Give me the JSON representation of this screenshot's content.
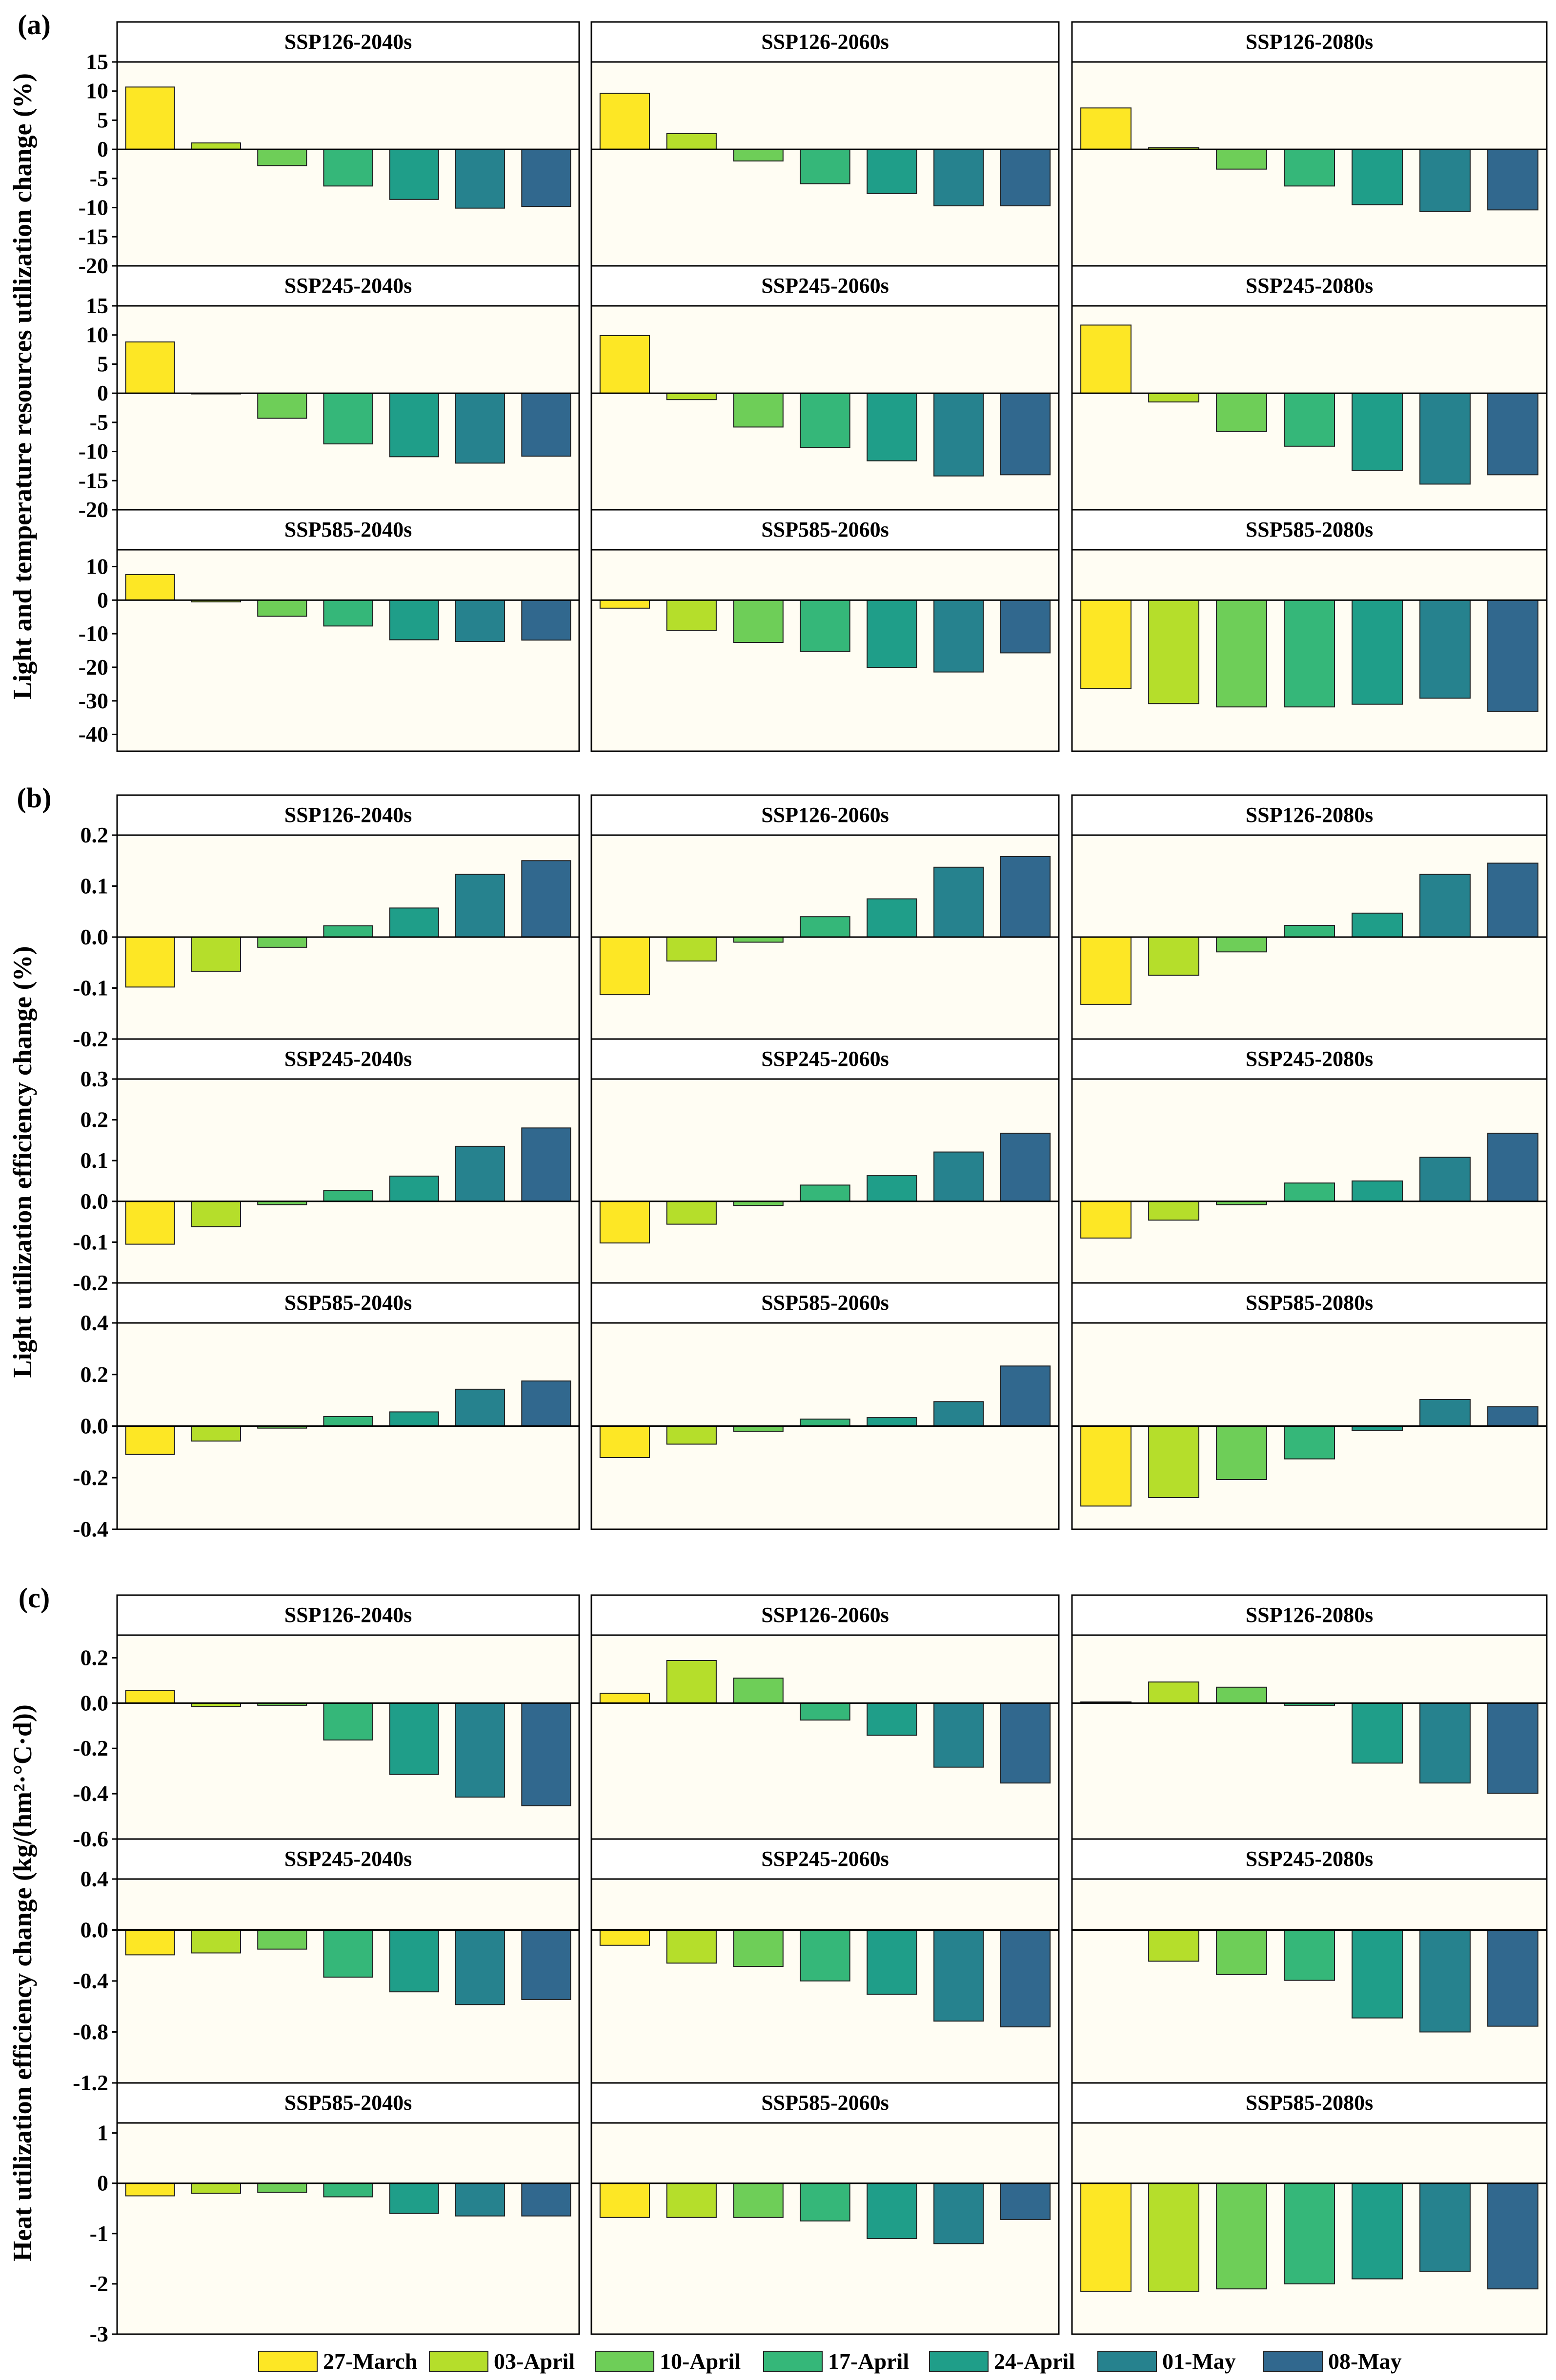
{
  "colors": [
    "#fde725",
    "#b5de2b",
    "#6ece58",
    "#35b779",
    "#1f9e89",
    "#26828e",
    "#31688e"
  ],
  "legend": [
    "27-March",
    "03-April",
    "10-April",
    "17-April",
    "24-April",
    "01-May",
    "08-May"
  ],
  "chart_data": [
    {
      "type": "bar",
      "label": "(a)",
      "ylabel": "Light and temperature resources utilization change (%)",
      "rows": [
        {
          "ylim": [
            -20,
            15
          ],
          "ticks": [
            15,
            10,
            5,
            0,
            -5,
            -10,
            -15,
            -20
          ]
        },
        {
          "ylim": [
            -20,
            15
          ],
          "ticks": [
            15,
            10,
            5,
            0,
            -5,
            -10,
            -15,
            -20
          ]
        },
        {
          "ylim": [
            -45,
            15
          ],
          "ticks": [
            10,
            0,
            -10,
            -20,
            -30,
            -40
          ]
        }
      ],
      "panels": [
        {
          "title": "SSP126-2040s",
          "values": [
            10.7,
            1.1,
            -2.8,
            -6.3,
            -8.6,
            -10.1,
            -9.8
          ]
        },
        {
          "title": "SSP126-2060s",
          "values": [
            9.6,
            2.7,
            -2.0,
            -5.9,
            -7.6,
            -9.7,
            -9.7
          ]
        },
        {
          "title": "SSP126-2080s",
          "values": [
            7.1,
            0.3,
            -3.4,
            -6.3,
            -9.5,
            -10.7,
            -10.4
          ]
        },
        {
          "title": "SSP245-2040s",
          "values": [
            8.8,
            0.0,
            -4.3,
            -8.7,
            -10.9,
            -12.0,
            -10.8
          ]
        },
        {
          "title": "SSP245-2060s",
          "values": [
            9.9,
            -1.1,
            -5.8,
            -9.3,
            -11.6,
            -14.2,
            -14.0
          ]
        },
        {
          "title": "SSP245-2080s",
          "values": [
            11.7,
            -1.5,
            -6.6,
            -9.1,
            -13.3,
            -15.6,
            -14.0
          ]
        },
        {
          "title": "SSP585-2040s",
          "values": [
            7.6,
            -0.5,
            -4.8,
            -7.7,
            -11.8,
            -12.3,
            -11.9
          ]
        },
        {
          "title": "SSP585-2060s",
          "values": [
            -2.4,
            -9.0,
            -12.6,
            -15.3,
            -20.0,
            -21.4,
            -15.7
          ]
        },
        {
          "title": "SSP585-2080s",
          "values": [
            -26.3,
            -30.8,
            -31.8,
            -31.8,
            -31.0,
            -29.2,
            -33.2
          ]
        }
      ]
    },
    {
      "type": "bar",
      "label": "(b)",
      "ylabel": "Light utilization efficiency change (%)",
      "rows": [
        {
          "ylim": [
            -0.2,
            0.2
          ],
          "ticks": [
            0.2,
            0.1,
            0.0,
            -0.1,
            -0.2
          ],
          "fmt": 1
        },
        {
          "ylim": [
            -0.2,
            0.3
          ],
          "ticks": [
            0.3,
            0.2,
            0.1,
            0.0,
            -0.1,
            -0.2
          ],
          "fmt": 1
        },
        {
          "ylim": [
            -0.4,
            0.4
          ],
          "ticks": [
            0.4,
            0.2,
            0.0,
            -0.2,
            -0.4
          ],
          "fmt": 1
        }
      ],
      "panels": [
        {
          "title": "SSP126-2040s",
          "values": [
            -0.098,
            -0.067,
            -0.02,
            0.022,
            0.057,
            0.123,
            0.15
          ]
        },
        {
          "title": "SSP126-2060s",
          "values": [
            -0.113,
            -0.047,
            -0.01,
            0.04,
            0.075,
            0.137,
            0.158
          ]
        },
        {
          "title": "SSP126-2080s",
          "values": [
            -0.132,
            -0.075,
            -0.029,
            0.023,
            0.047,
            0.123,
            0.145
          ]
        },
        {
          "title": "SSP245-2040s",
          "values": [
            -0.105,
            -0.062,
            -0.008,
            0.027,
            0.062,
            0.135,
            0.18
          ]
        },
        {
          "title": "SSP245-2060s",
          "values": [
            -0.102,
            -0.056,
            -0.01,
            0.04,
            0.063,
            0.121,
            0.167
          ]
        },
        {
          "title": "SSP245-2080s",
          "values": [
            -0.09,
            -0.046,
            -0.008,
            0.045,
            0.05,
            0.108,
            0.167
          ]
        },
        {
          "title": "SSP585-2040s",
          "values": [
            -0.11,
            -0.058,
            -0.008,
            0.037,
            0.055,
            0.143,
            0.175
          ]
        },
        {
          "title": "SSP585-2060s",
          "values": [
            -0.122,
            -0.07,
            -0.02,
            0.027,
            0.033,
            0.095,
            0.233
          ]
        },
        {
          "title": "SSP585-2080s",
          "values": [
            -0.31,
            -0.277,
            -0.207,
            -0.127,
            -0.018,
            0.103,
            0.075
          ]
        }
      ]
    },
    {
      "type": "bar",
      "label": "(c)",
      "ylabel": "Heat utilization efficiency change (kg/(hm²·°C·d))",
      "rows": [
        {
          "ylim": [
            -0.6,
            0.3
          ],
          "ticks": [
            0.2,
            0.0,
            -0.2,
            -0.4,
            -0.6
          ],
          "fmt": 1
        },
        {
          "ylim": [
            -1.2,
            0.4
          ],
          "ticks": [
            0.4,
            0.0,
            -0.4,
            -0.8,
            -1.2
          ],
          "fmt": 1
        },
        {
          "ylim": [
            -3,
            1.2
          ],
          "ticks": [
            1,
            0,
            -1,
            -2,
            -3
          ],
          "fmt": 0
        }
      ],
      "panels": [
        {
          "title": "SSP126-2040s",
          "values": [
            0.055,
            -0.015,
            -0.01,
            -0.163,
            -0.315,
            -0.415,
            -0.453
          ]
        },
        {
          "title": "SSP126-2060s",
          "values": [
            0.043,
            0.188,
            0.11,
            -0.075,
            -0.142,
            -0.283,
            -0.353
          ]
        },
        {
          "title": "SSP126-2080s",
          "values": [
            0.005,
            0.093,
            0.07,
            -0.01,
            -0.265,
            -0.353,
            -0.398
          ]
        },
        {
          "title": "SSP245-2040s",
          "values": [
            -0.195,
            -0.18,
            -0.15,
            -0.37,
            -0.485,
            -0.585,
            -0.545
          ]
        },
        {
          "title": "SSP245-2060s",
          "values": [
            -0.12,
            -0.26,
            -0.285,
            -0.4,
            -0.505,
            -0.715,
            -0.76
          ]
        },
        {
          "title": "SSP245-2080s",
          "values": [
            0.0,
            -0.245,
            -0.35,
            -0.395,
            -0.69,
            -0.8,
            -0.755
          ]
        },
        {
          "title": "SSP585-2040s",
          "values": [
            -0.25,
            -0.2,
            -0.18,
            -0.27,
            -0.6,
            -0.65,
            -0.65
          ]
        },
        {
          "title": "SSP585-2060s",
          "values": [
            -0.68,
            -0.68,
            -0.68,
            -0.75,
            -1.1,
            -1.2,
            -0.72
          ]
        },
        {
          "title": "SSP585-2080s",
          "values": [
            -2.15,
            -2.15,
            -2.1,
            -2.0,
            -1.9,
            -1.75,
            -2.1
          ]
        }
      ]
    }
  ]
}
